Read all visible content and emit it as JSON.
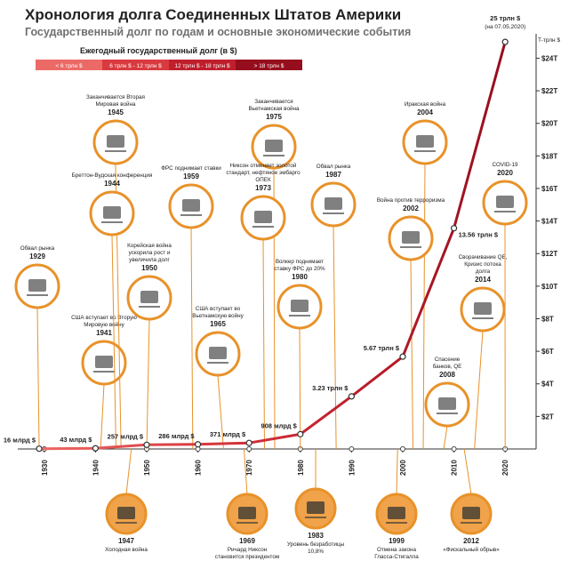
{
  "chart_data": {
    "type": "line",
    "title": "Хронология долга Соединенных Штатов Америки",
    "subtitle": "Государственный долг по годам и основные экономические события",
    "legend_title": "Ежегодный государственный долг (в $)",
    "legend": [
      {
        "label": "< 6 трлн $",
        "color": "#ec6a66"
      },
      {
        "label": "6 трлн $ - 12 трлн $",
        "color": "#d93a3f"
      },
      {
        "label": "12 трлн $ - 18 трлн $",
        "color": "#bf1f2c"
      },
      {
        "label": "> 18 трлн $",
        "color": "#960e1d"
      }
    ],
    "y_unit_label": "T-трлн $",
    "x": [
      1929,
      1940,
      1950,
      1960,
      1970,
      1980,
      1990,
      2000,
      2010,
      2020
    ],
    "series": [
      {
        "values": [
          0.016,
          0.043,
          0.257,
          0.286,
          0.371,
          0.908,
          3.23,
          5.67,
          13.56,
          25
        ],
        "value_labels": [
          "16 млрд $",
          "43 млрд $",
          "257 млрд $",
          "286 млрд $",
          "371 млрд $",
          "908 млрд $",
          "3.23 трлн $",
          "5.67 трлн $",
          "13.56 трлн $",
          "25 трлн $"
        ],
        "value_notes": [
          null,
          null,
          null,
          null,
          null,
          null,
          null,
          null,
          null,
          "(на 07.05.2020)"
        ]
      }
    ],
    "xlim": [
      1925,
      2025
    ],
    "xticks": [
      1930,
      1940,
      1950,
      1960,
      1970,
      1980,
      1990,
      2000,
      2010,
      2020
    ],
    "ylim": [
      0,
      25.5
    ],
    "yticks": [
      {
        "value": 2,
        "label": "$2T"
      },
      {
        "value": 4,
        "label": "$4T"
      },
      {
        "value": 6,
        "label": "$6T"
      },
      {
        "value": 8,
        "label": "$8T"
      },
      {
        "value": 10,
        "label": "$10T"
      },
      {
        "value": 12,
        "label": "$12T"
      },
      {
        "value": 14,
        "label": "$14T"
      },
      {
        "value": 16,
        "label": "$16T"
      },
      {
        "value": 18,
        "label": "$18T"
      },
      {
        "value": 20,
        "label": "$20T"
      },
      {
        "value": 22,
        "label": "$22T"
      },
      {
        "value": 24,
        "label": "$24T"
      }
    ],
    "events": [
      {
        "year": "1929",
        "lines": [
          "Обвал рынка"
        ],
        "side": "top"
      },
      {
        "year": "1941",
        "lines": [
          "США вступает во Вторую",
          "Мировую войну"
        ],
        "side": "top"
      },
      {
        "year": "1945",
        "lines": [
          "Заканчивается Вторая",
          "Мировая война"
        ],
        "side": "top"
      },
      {
        "year": "1944",
        "lines": [
          "Бреттон-Вудская конференция"
        ],
        "side": "top"
      },
      {
        "year": "1950",
        "lines": [
          "Корейская война",
          "ускорила рост и",
          "увеличила долг"
        ],
        "side": "top"
      },
      {
        "year": "1959",
        "lines": [
          "ФРС поднимает ставки"
        ],
        "side": "top"
      },
      {
        "year": "1965",
        "lines": [
          "США вступает во",
          "Вьетнамскую войну"
        ],
        "side": "top"
      },
      {
        "year": "1975",
        "lines": [
          "Заканчивается",
          "Вьетнамская война"
        ],
        "side": "top"
      },
      {
        "year": "1973",
        "lines": [
          "Никсон отменяет золотой",
          "стандарт, нефтяное эмбарго",
          "ОПЕК"
        ],
        "side": "top"
      },
      {
        "year": "1980",
        "lines": [
          "Волкер поднимает",
          "ставку ФРС до 20%"
        ],
        "side": "top"
      },
      {
        "year": "1987",
        "lines": [
          "Обвал рынка"
        ],
        "side": "top"
      },
      {
        "year": "2004",
        "lines": [
          "Иракская война"
        ],
        "side": "top"
      },
      {
        "year": "2002",
        "lines": [
          "Война против терроризма"
        ],
        "side": "top"
      },
      {
        "year": "2008",
        "lines": [
          "Спасение",
          "банков, QE"
        ],
        "side": "top"
      },
      {
        "year": "2014",
        "lines": [
          "Сворачивание QE,",
          "Кризис потока",
          "долга"
        ],
        "side": "top"
      },
      {
        "year": "2020",
        "lines": [
          "COVID-19"
        ],
        "side": "top"
      },
      {
        "year": "1947",
        "lines": [
          "Холодная война"
        ],
        "side": "bottom"
      },
      {
        "year": "1969",
        "lines": [
          "Ричард Никсон",
          "становится президентом"
        ],
        "side": "bottom"
      },
      {
        "year": "1983",
        "lines": [
          "Уровень безработицы",
          "10,8%"
        ],
        "side": "bottom"
      },
      {
        "year": "1999",
        "lines": [
          "Отмена закона",
          "Гласса-Стигалла"
        ],
        "side": "bottom"
      },
      {
        "year": "2012",
        "lines": [
          "«Фискальный обрыв»"
        ],
        "side": "bottom"
      }
    ]
  }
}
